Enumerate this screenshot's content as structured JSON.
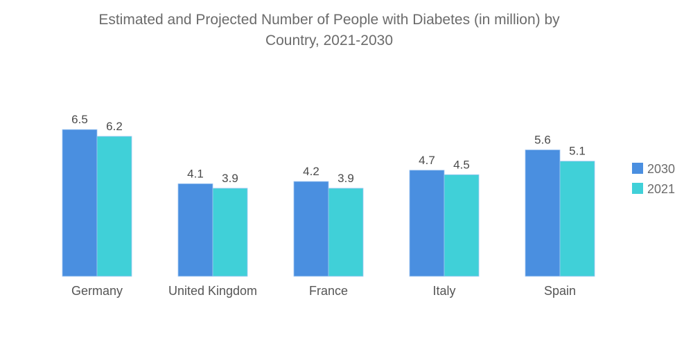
{
  "chart_data": {
    "type": "bar",
    "title_line1": "Estimated and Projected Number of People with Diabetes (in million) by",
    "title_line2": "Country, 2021-2030",
    "xlabel": "",
    "ylabel": "",
    "categories": [
      "Germany",
      "United Kingdom",
      "France",
      "Italy",
      "Spain"
    ],
    "series": [
      {
        "name": "2030",
        "color": "#4a8fe0",
        "values": [
          6.5,
          4.1,
          4.2,
          4.7,
          5.6
        ],
        "labels": [
          "6.5",
          "4.1",
          "4.2",
          "4.7",
          "5.6"
        ]
      },
      {
        "name": "2021",
        "color": "#40d0d8",
        "values": [
          6.2,
          3.9,
          3.9,
          4.5,
          5.1
        ],
        "labels": [
          "6.2",
          "3.9",
          "3.9",
          "4.5",
          "5.1"
        ]
      }
    ],
    "ylim": [
      0,
      7
    ],
    "grid": false,
    "legend_position": "right"
  }
}
